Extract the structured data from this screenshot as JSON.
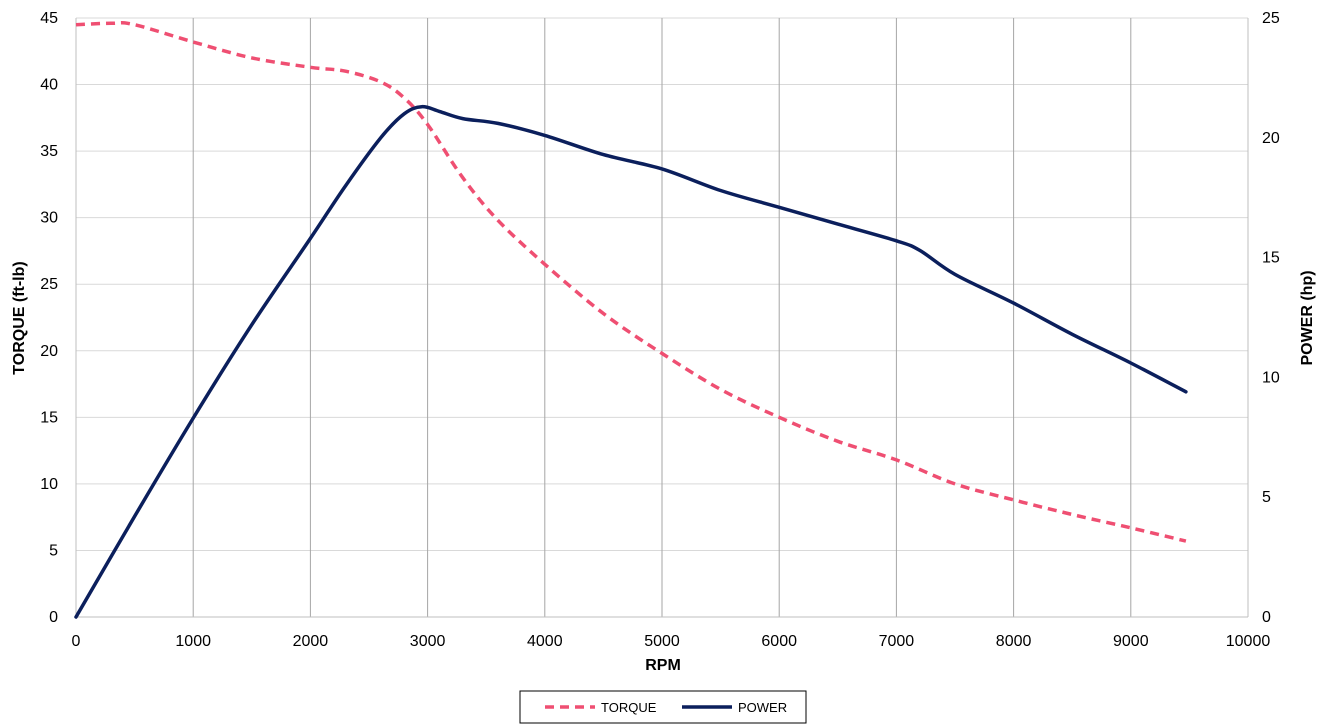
{
  "chart_data": {
    "type": "line",
    "xlabel": "RPM",
    "ylabel_left": "TORQUE (ft-lb)",
    "ylabel_right": "POWER (hp)",
    "xlim": [
      0,
      10000
    ],
    "ylim_left": [
      0,
      45
    ],
    "ylim_right": [
      0,
      25
    ],
    "x_ticks": [
      "0",
      "1000",
      "2000",
      "3000",
      "4000",
      "5000",
      "6000",
      "7000",
      "8000",
      "9000",
      "10000"
    ],
    "y_left_ticks": [
      "0",
      "5",
      "10",
      "15",
      "20",
      "25",
      "30",
      "35",
      "40",
      "45"
    ],
    "y_right_ticks": [
      "0",
      "5",
      "10",
      "15",
      "20",
      "25"
    ],
    "grid": {
      "vertical": true,
      "horizontal": true
    },
    "legend_position": "bottom-center",
    "series": [
      {
        "name": "TORQUE",
        "axis": "left",
        "style": "dashed",
        "color": "#ef4f72",
        "x": [
          0,
          300,
          500,
          1000,
          1500,
          2000,
          2300,
          2600,
          2800,
          3000,
          3300,
          3600,
          4000,
          4500,
          5000,
          5500,
          6000,
          6500,
          7000,
          7500,
          8000,
          8500,
          9000,
          9470
        ],
        "y": [
          44.5,
          44.6,
          44.5,
          43.2,
          42.0,
          41.3,
          41.0,
          40.2,
          39.0,
          37.0,
          33.0,
          29.8,
          26.5,
          22.8,
          19.8,
          17.1,
          15.0,
          13.2,
          11.8,
          10.0,
          8.8,
          7.7,
          6.7,
          5.7
        ]
      },
      {
        "name": "POWER",
        "axis": "right",
        "style": "solid",
        "color": "#0b1f5c",
        "x": [
          0,
          500,
          1000,
          1500,
          2000,
          2300,
          2600,
          2800,
          2950,
          3100,
          3300,
          3600,
          4000,
          4500,
          5000,
          5500,
          6000,
          6500,
          7000,
          7200,
          7500,
          8000,
          8500,
          9000,
          9470
        ],
        "y": [
          0,
          4.2,
          8.3,
          12.2,
          15.8,
          18.0,
          20.0,
          21.0,
          21.3,
          21.1,
          20.8,
          20.6,
          20.1,
          19.3,
          18.7,
          17.8,
          17.1,
          16.4,
          15.7,
          15.3,
          14.3,
          13.1,
          11.8,
          10.6,
          9.4
        ]
      }
    ]
  }
}
